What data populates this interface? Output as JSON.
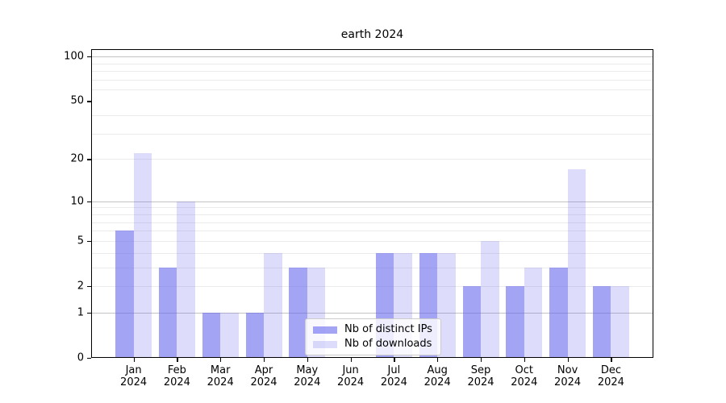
{
  "chart_data": {
    "type": "bar",
    "title": "earth 2024",
    "categories": [
      "Jan 2024",
      "Feb 2024",
      "Mar 2024",
      "Apr 2024",
      "May 2024",
      "Jun 2024",
      "Jul 2024",
      "Aug 2024",
      "Sep 2024",
      "Oct 2024",
      "Nov 2024",
      "Dec 2024"
    ],
    "series": [
      {
        "name": "Nb of distinct IPs",
        "slug": "distinct-ips",
        "color": "rgba(98,98,238,0.58)",
        "apparent_hex": "#a5a5f3",
        "values": [
          6,
          3,
          1,
          1,
          3,
          0,
          4,
          4,
          2,
          2,
          3,
          2
        ]
      },
      {
        "name": "Nb of downloads",
        "slug": "downloads",
        "color": "rgba(98,98,238,0.22)",
        "apparent_hex": "#dcdcfa",
        "values": [
          22,
          10,
          1,
          4,
          3,
          0,
          4,
          4,
          5,
          3,
          17,
          2
        ]
      }
    ],
    "xlabel": "",
    "ylabel": "",
    "yscale": "log1p",
    "ylim": [
      0,
      112
    ],
    "yticks": [
      0,
      1,
      2,
      5,
      10,
      20,
      50,
      100
    ],
    "major_gridlines": [
      1,
      10,
      100
    ],
    "minor_gridlines": [
      2,
      3,
      4,
      5,
      6,
      7,
      8,
      9,
      20,
      30,
      40,
      60,
      70,
      80,
      90
    ],
    "grid": true,
    "legend_position": "lower center"
  }
}
